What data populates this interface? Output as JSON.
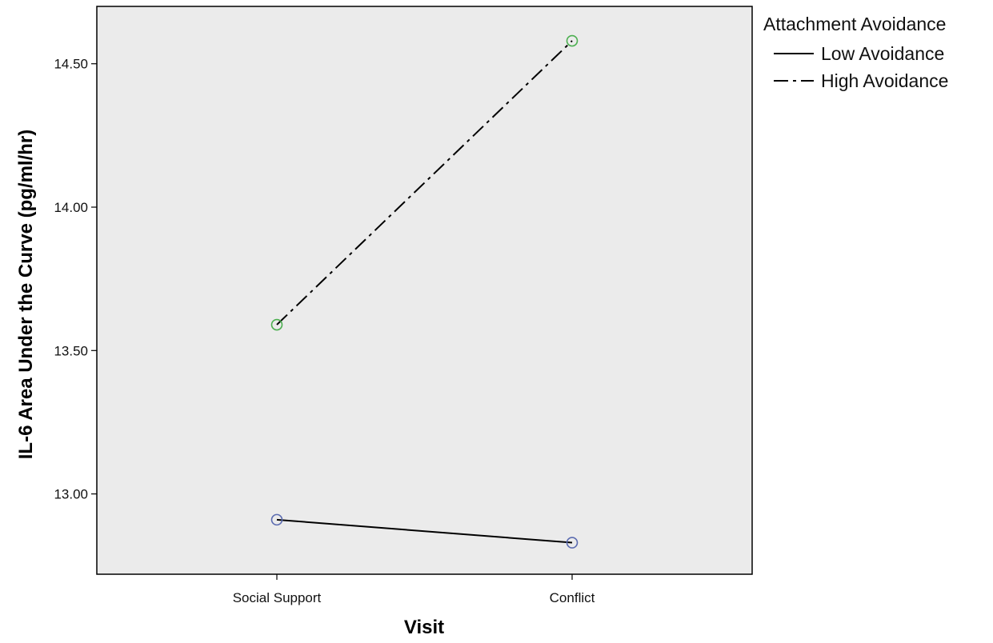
{
  "chart_data": {
    "type": "line",
    "xlabel": "Visit",
    "ylabel": "IL-6 Area Under the Curve (pg/ml/hr)",
    "categories": [
      "Social Support",
      "Conflict"
    ],
    "ylim": [
      12.72,
      14.7
    ],
    "yticks": [
      13.0,
      13.5,
      14.0,
      14.5
    ],
    "ytick_labels": [
      "13.00",
      "13.50",
      "14.00",
      "14.50"
    ],
    "legend_title": "Attachment Avoidance",
    "legend_position": "right",
    "plot_background": "#ebebeb",
    "series": [
      {
        "name": "Low Avoidance",
        "values": [
          12.91,
          12.83
        ],
        "line_style": "solid",
        "marker_color": "#5b6bb0",
        "line_color": "#000000"
      },
      {
        "name": "High Avoidance",
        "values": [
          13.59,
          14.58
        ],
        "line_style": "dash-dot",
        "marker_color": "#4caf50",
        "line_color": "#000000"
      }
    ]
  }
}
